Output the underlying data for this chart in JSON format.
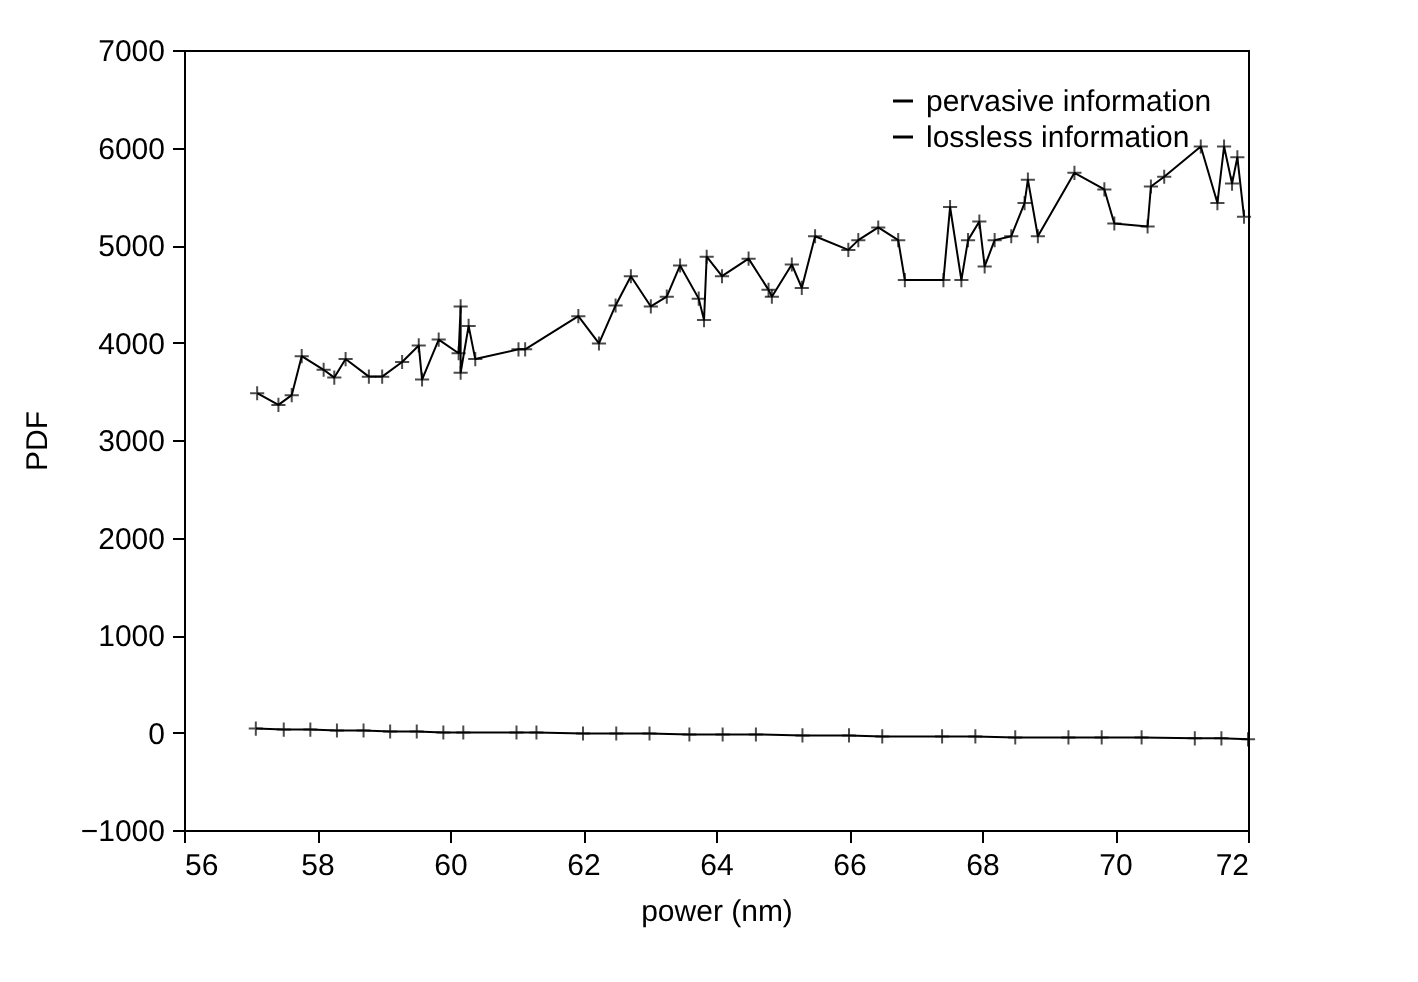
{
  "chart_data": {
    "type": "line",
    "xlabel": "power (nm)",
    "ylabel": "PDF",
    "xlim": [
      56,
      72
    ],
    "xticks": [
      56,
      58,
      60,
      62,
      64,
      66,
      68,
      70,
      72
    ],
    "ylim": [
      -1000,
      7000
    ],
    "yticks": [
      -1000,
      0,
      1000,
      2000,
      3000,
      4000,
      5000,
      6000,
      7000
    ],
    "grid": false,
    "legend": "top right",
    "marker": "cross",
    "line_style": "solid",
    "series": [
      {
        "name": "pervasive information",
        "color": "#000000",
        "x": [
          57.1,
          57.42,
          57.62,
          57.77,
          58.1,
          58.26,
          58.43,
          58.78,
          58.98,
          59.28,
          59.53,
          59.58,
          59.83,
          60.13,
          60.16,
          60.16,
          60.28,
          60.38,
          61.03,
          61.13,
          61.93,
          62.24,
          62.49,
          62.72,
          63.02,
          63.26,
          63.46,
          63.74,
          63.82,
          63.86,
          64.09,
          64.49,
          64.79,
          64.84,
          65.14,
          65.29,
          65.49,
          65.99,
          66.14,
          66.44,
          66.74,
          66.84,
          67.42,
          67.52,
          67.69,
          67.79,
          67.96,
          68.04,
          68.19,
          68.44,
          68.64,
          68.69,
          68.84,
          69.39,
          69.84,
          69.99,
          70.49,
          70.54,
          70.74,
          71.29,
          71.54,
          71.64,
          71.76,
          71.84,
          71.94
        ],
        "values": [
          3480,
          3360,
          3460,
          3860,
          3720,
          3640,
          3830,
          3650,
          3650,
          3800,
          3970,
          3620,
          4030,
          3890,
          4370,
          3690,
          4170,
          3830,
          3930,
          3930,
          4270,
          3990,
          4380,
          4680,
          4370,
          4470,
          4790,
          4450,
          4230,
          4880,
          4680,
          4860,
          4540,
          4470,
          4800,
          4560,
          5090,
          4950,
          5050,
          5180,
          5050,
          4640,
          4640,
          5390,
          4640,
          5050,
          5240,
          4780,
          5050,
          5090,
          5430,
          5670,
          5090,
          5740,
          5570,
          5220,
          5190,
          5600,
          5700,
          6010,
          5430,
          6010,
          5630,
          5900,
          5290
        ]
      },
      {
        "name": "lossless information",
        "color": "#000000",
        "x": [
          57.08,
          57.5,
          57.9,
          58.3,
          58.7,
          59.1,
          59.5,
          59.9,
          60.2,
          61.0,
          61.3,
          62.0,
          62.5,
          63.0,
          63.6,
          64.1,
          64.6,
          65.3,
          66.0,
          66.5,
          67.4,
          67.9,
          68.5,
          69.3,
          69.8,
          70.4,
          71.2,
          71.6,
          72.0
        ],
        "values": [
          40,
          30,
          30,
          20,
          20,
          10,
          10,
          0,
          0,
          0,
          0,
          -10,
          -10,
          -10,
          -20,
          -20,
          -20,
          -30,
          -30,
          -40,
          -40,
          -40,
          -50,
          -50,
          -50,
          -50,
          -60,
          -60,
          -70
        ]
      }
    ]
  }
}
